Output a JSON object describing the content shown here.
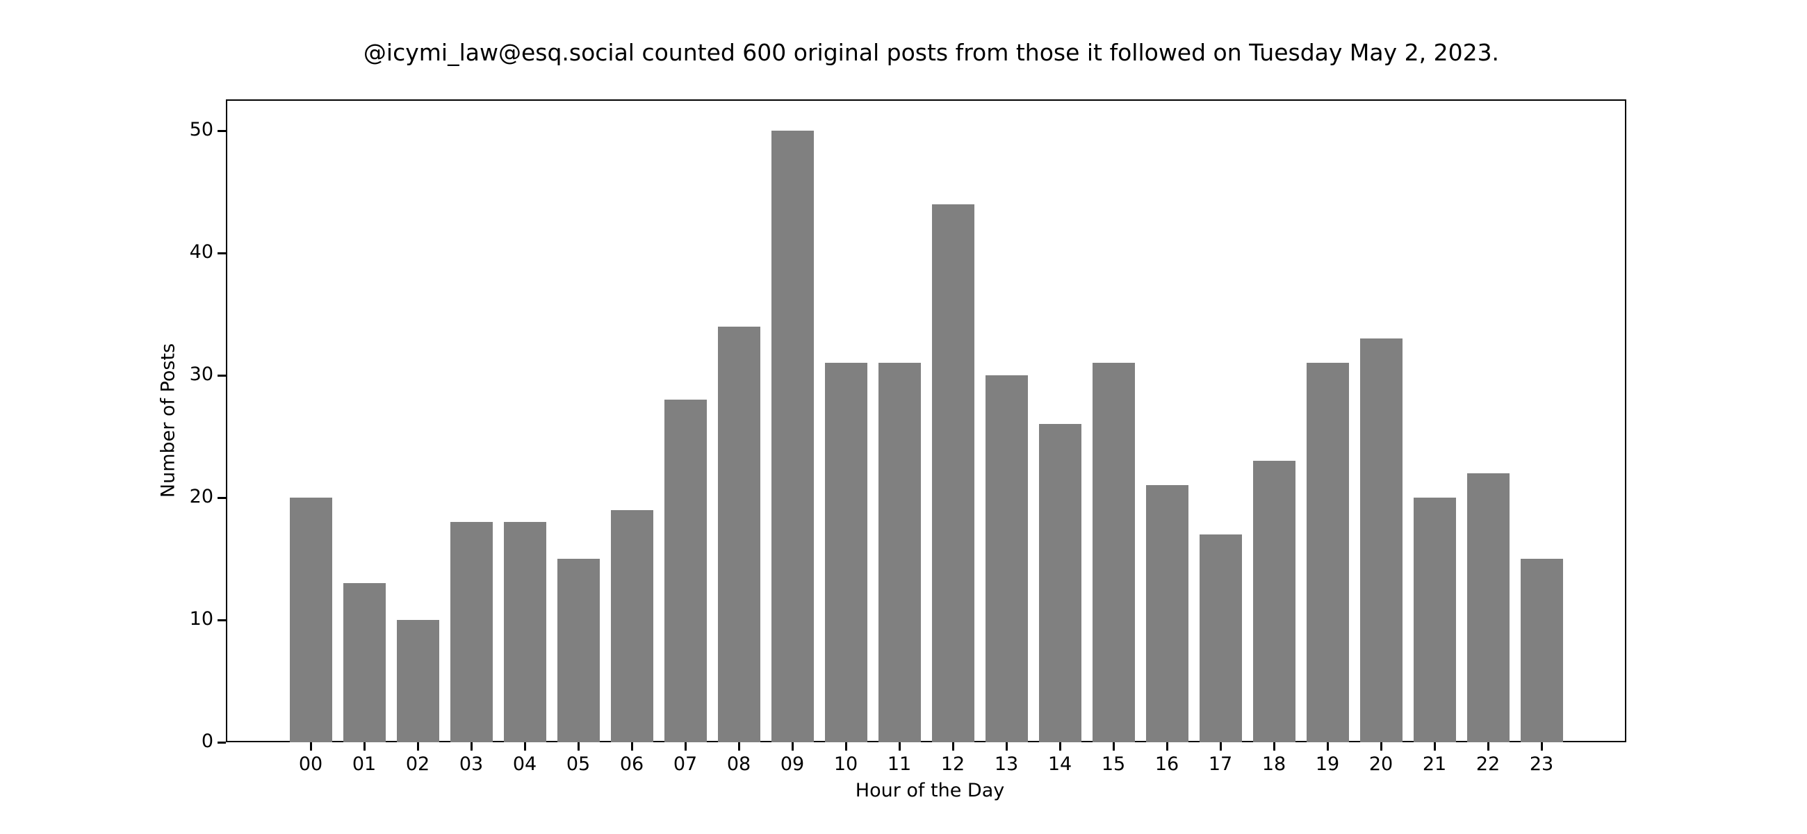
{
  "chart_data": {
    "type": "bar",
    "title": "@icymi_law@esq.social counted 600 original posts from those it followed on Tuesday May 2, 2023.",
    "xlabel": "Hour of the Day",
    "ylabel": "Number of Posts",
    "categories": [
      "00",
      "01",
      "02",
      "03",
      "04",
      "05",
      "06",
      "07",
      "08",
      "09",
      "10",
      "11",
      "12",
      "13",
      "14",
      "15",
      "16",
      "17",
      "18",
      "19",
      "20",
      "21",
      "22",
      "23"
    ],
    "values": [
      20,
      13,
      10,
      18,
      18,
      15,
      19,
      28,
      34,
      50,
      31,
      31,
      44,
      30,
      26,
      31,
      21,
      17,
      23,
      31,
      33,
      20,
      22,
      15
    ],
    "ylim": [
      0,
      52.5
    ],
    "yticks": [
      0,
      10,
      20,
      30,
      40,
      50
    ],
    "grid": false,
    "legend": null,
    "bar_color": "#808080"
  }
}
